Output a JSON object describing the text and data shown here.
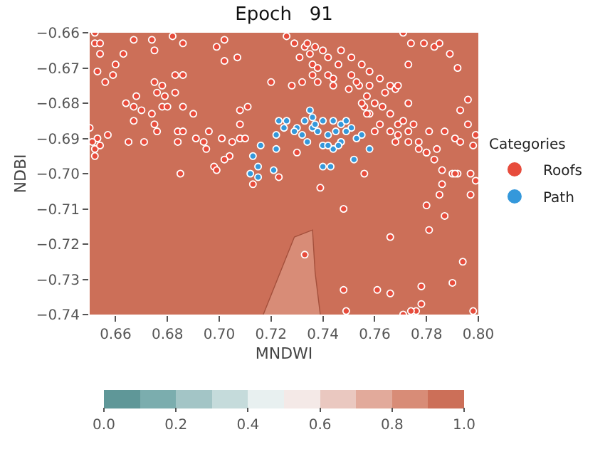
{
  "chart_data": {
    "type": "scatter",
    "title": "Epoch   91",
    "xlabel": "MNDWI",
    "ylabel": "NDBI",
    "legend_title": "Categories",
    "xlim": [
      0.65,
      0.8
    ],
    "xticks": [
      0.66,
      0.68,
      {
        "value": 0.7,
        "label": "0.70"
      },
      0.72,
      0.74,
      0.76,
      0.78,
      {
        "value": 0.8,
        "label": "0.80"
      }
    ],
    "ylim": [
      -0.74,
      -0.66
    ],
    "yticks": [
      {
        "value": -0.74,
        "label": "−0.74"
      },
      {
        "value": -0.73,
        "label": "−0.73"
      },
      {
        "value": -0.72,
        "label": "−0.72"
      },
      {
        "value": -0.71,
        "label": "−0.71"
      },
      {
        "value": -0.7,
        "label": "−0.70"
      },
      {
        "value": -0.69,
        "label": "−0.69"
      },
      {
        "value": -0.68,
        "label": "−0.68"
      },
      {
        "value": -0.67,
        "label": "−0.67"
      },
      {
        "value": -0.66,
        "label": "−0.66"
      }
    ],
    "clim": [
      0,
      1
    ],
    "cticks": [
      {
        "value": 0,
        "label": "0.0"
      },
      0.2,
      0.4,
      0.6,
      0.8,
      {
        "value": 1,
        "label": "1.0"
      }
    ],
    "colors": [
      "#5f9798",
      "#7badae",
      "#a3c5c6",
      "#c5dbdb",
      "#e8f0f0",
      "#f4e9e7",
      "#eac8c0",
      "#e2aa9b",
      "#d88c77",
      "#cc6f58"
    ],
    "bands": [
      {
        "axis": "y",
        "from": -0.74,
        "to": -0.66,
        "color": "#cc6f58"
      }
    ],
    "grid": false,
    "legend": "right",
    "marker": "circle",
    "series": [
      {
        "type": "area",
        "marker": "none",
        "color": "#d88c77",
        "x": [
          0.717,
          0.723,
          0.729,
          0.736,
          0.737,
          0.739
        ],
        "values": [
          -0.74,
          -0.729,
          -0.718,
          -0.716,
          -0.728,
          -0.74
        ]
      },
      {
        "name": "Roofs",
        "color": "#e74c3c",
        "x": [
          0.652,
          0.652,
          0.654,
          0.654,
          0.653,
          0.656,
          0.659,
          0.66,
          0.663,
          0.667,
          0.674,
          0.675,
          0.686,
          0.682,
          0.699,
          0.702,
          0.707,
          0.702,
          0.686,
          0.683,
          0.675,
          0.678,
          0.676,
          0.679,
          0.683,
          0.668,
          0.664,
          0.667,
          0.67,
          0.674,
          0.678,
          0.68,
          0.686,
          0.69,
          0.667,
          0.675,
          0.676,
          0.684,
          0.686,
          0.691,
          0.684,
          0.694,
          0.696,
          0.701,
          0.705,
          0.708,
          0.708,
          0.711,
          0.708,
          0.71,
          0.704,
          0.702,
          0.698,
          0.699,
          0.695,
          0.685,
          0.665,
          0.671,
          0.657,
          0.653,
          0.652,
          0.652,
          0.654,
          0.65,
          0.651,
          0.713,
          0.72,
          0.728,
          0.732,
          0.723,
          0.73,
          0.739,
          0.748,
          0.733,
          0.748,
          0.749,
          0.761,
          0.766,
          0.766,
          0.778,
          0.778,
          0.776,
          0.774,
          0.771,
          0.781,
          0.78,
          0.787,
          0.785,
          0.794,
          0.79,
          0.798,
          0.756,
          0.747,
          0.726,
          0.729,
          0.733,
          0.735,
          0.736,
          0.738,
          0.742,
          0.744,
          0.731,
          0.734,
          0.74,
          0.746,
          0.747,
          0.751,
          0.755,
          0.758,
          0.762,
          0.766,
          0.768,
          0.751,
          0.754,
          0.757,
          0.76,
          0.763,
          0.766,
          0.769,
          0.773,
          0.777,
          0.78,
          0.783,
          0.786,
          0.79,
          0.756,
          0.758,
          0.762,
          0.766,
          0.769,
          0.773,
          0.777,
          0.78,
          0.784,
          0.787,
          0.791,
          0.792,
          0.744,
          0.738,
          0.736,
          0.75,
          0.755,
          0.757,
          0.76,
          0.768,
          0.771,
          0.775,
          0.773,
          0.781,
          0.769,
          0.764,
          0.758,
          0.753,
          0.742,
          0.737,
          0.771,
          0.774,
          0.779,
          0.783,
          0.785,
          0.789,
          0.792,
          0.773,
          0.793,
          0.796,
          0.796,
          0.799,
          0.793,
          0.798,
          0.799,
          0.791,
          0.797,
          0.797,
          0.786
        ],
        "values": [
          -0.66,
          -0.663,
          -0.663,
          -0.666,
          -0.671,
          -0.674,
          -0.672,
          -0.669,
          -0.666,
          -0.662,
          -0.662,
          -0.665,
          -0.663,
          -0.661,
          -0.664,
          -0.662,
          -0.667,
          -0.668,
          -0.672,
          -0.672,
          -0.674,
          -0.675,
          -0.677,
          -0.678,
          -0.677,
          -0.678,
          -0.68,
          -0.681,
          -0.682,
          -0.683,
          -0.681,
          -0.681,
          -0.681,
          -0.683,
          -0.685,
          -0.686,
          -0.688,
          -0.688,
          -0.688,
          -0.69,
          -0.691,
          -0.691,
          -0.688,
          -0.69,
          -0.691,
          -0.686,
          -0.682,
          -0.681,
          -0.69,
          -0.69,
          -0.695,
          -0.696,
          -0.698,
          -0.699,
          -0.693,
          -0.7,
          -0.691,
          -0.691,
          -0.689,
          -0.69,
          -0.693,
          -0.695,
          -0.692,
          -0.687,
          -0.691,
          -0.703,
          -0.674,
          -0.675,
          -0.674,
          -0.701,
          -0.694,
          -0.704,
          -0.71,
          -0.723,
          -0.733,
          -0.739,
          -0.733,
          -0.718,
          -0.734,
          -0.732,
          -0.737,
          -0.739,
          -0.739,
          -0.74,
          -0.716,
          -0.709,
          -0.712,
          -0.706,
          -0.725,
          -0.731,
          -0.739,
          -0.7,
          -0.691,
          -0.661,
          -0.663,
          -0.664,
          -0.666,
          -0.669,
          -0.67,
          -0.672,
          -0.673,
          -0.667,
          -0.663,
          -0.665,
          -0.669,
          -0.665,
          -0.667,
          -0.669,
          -0.671,
          -0.673,
          -0.675,
          -0.676,
          -0.672,
          -0.675,
          -0.678,
          -0.68,
          -0.681,
          -0.683,
          -0.686,
          -0.688,
          -0.691,
          -0.694,
          -0.696,
          -0.699,
          -0.7,
          -0.681,
          -0.683,
          -0.686,
          -0.688,
          -0.689,
          -0.691,
          -0.693,
          -0.694,
          -0.693,
          -0.688,
          -0.69,
          -0.7,
          -0.675,
          -0.674,
          -0.672,
          -0.676,
          -0.68,
          -0.683,
          -0.688,
          -0.691,
          -0.685,
          -0.686,
          -0.68,
          -0.688,
          -0.675,
          -0.677,
          -0.675,
          -0.674,
          -0.667,
          -0.664,
          -0.66,
          -0.663,
          -0.663,
          -0.664,
          -0.663,
          -0.666,
          -0.67,
          -0.669,
          -0.682,
          -0.679,
          -0.686,
          -0.689,
          -0.691,
          -0.692,
          -0.702,
          -0.7,
          -0.7,
          -0.706,
          -0.703
        ]
      },
      {
        "name": "Path",
        "color": "#3498db",
        "x": [
          0.735,
          0.723,
          0.722,
          0.725,
          0.73,
          0.726,
          0.733,
          0.736,
          0.74,
          0.744,
          0.747,
          0.751,
          0.755,
          0.734,
          0.738,
          0.742,
          0.74,
          0.744,
          0.747,
          0.749,
          0.753,
          0.736,
          0.729,
          0.745,
          0.752,
          0.758,
          0.74,
          0.743,
          0.716,
          0.722,
          0.713,
          0.715,
          0.715,
          0.712,
          0.721,
          0.746,
          0.742,
          0.732,
          0.737,
          0.749
        ],
        "values": [
          -0.682,
          -0.685,
          -0.689,
          -0.687,
          -0.687,
          -0.685,
          -0.685,
          -0.684,
          -0.685,
          -0.685,
          -0.686,
          -0.687,
          -0.689,
          -0.691,
          -0.688,
          -0.689,
          -0.692,
          -0.693,
          -0.691,
          -0.688,
          -0.69,
          -0.687,
          -0.688,
          -0.688,
          -0.696,
          -0.693,
          -0.698,
          -0.698,
          -0.692,
          -0.693,
          -0.695,
          -0.698,
          -0.701,
          -0.7,
          -0.699,
          -0.692,
          -0.692,
          -0.689,
          -0.686,
          -0.685
        ]
      }
    ]
  }
}
